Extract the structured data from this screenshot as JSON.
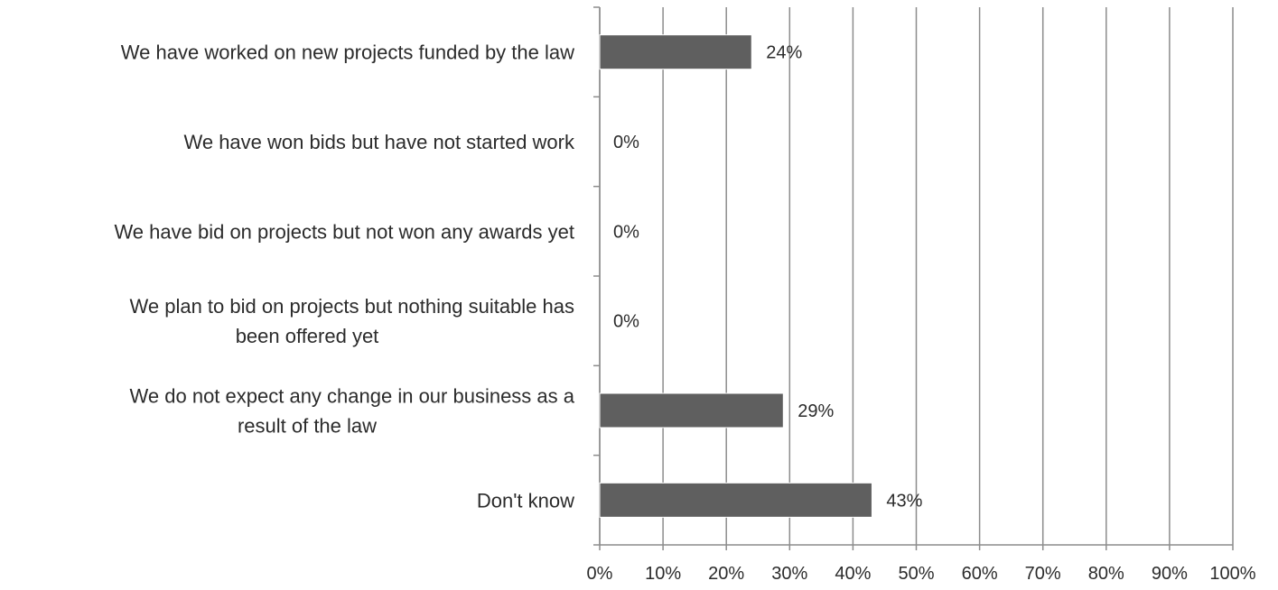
{
  "chart_data": {
    "type": "bar",
    "orientation": "horizontal",
    "title": "",
    "xlabel": "",
    "ylabel": "",
    "categories": [
      "We have worked on new projects funded by the law",
      "We have won bids but have not started work",
      "We have bid on projects but not won any awards yet",
      "We plan to bid on projects but nothing suitable has been offered yet",
      "We do not expect any change in our business as a result of the law",
      "Don't know"
    ],
    "category_lines": [
      [
        "We have worked on new projects funded by the law"
      ],
      [
        "We have won bids but have not started work"
      ],
      [
        "We have bid on projects but not won any awards yet"
      ],
      [
        "We plan to bid on projects but nothing suitable has",
        "been offered yet"
      ],
      [
        "We do not expect any change in our business as a",
        "result of the law"
      ],
      [
        "Don't know"
      ]
    ],
    "values": [
      24,
      0,
      0,
      0,
      29,
      43
    ],
    "data_labels": [
      "24%",
      "0%",
      "0%",
      "0%",
      "29%",
      "43%"
    ],
    "xlim": [
      0,
      100
    ],
    "xticks": [
      0,
      10,
      20,
      30,
      40,
      50,
      60,
      70,
      80,
      90,
      100
    ],
    "xtick_labels": [
      "0%",
      "10%",
      "20%",
      "30%",
      "40%",
      "50%",
      "60%",
      "70%",
      "80%",
      "90%",
      "100%"
    ],
    "grid": "vertical",
    "legend": "none",
    "colors": {
      "bar": "#5f5f5f",
      "grid": "#8c8c8c",
      "axis": "#8c8c8c",
      "text": "#2b2b2b"
    }
  }
}
